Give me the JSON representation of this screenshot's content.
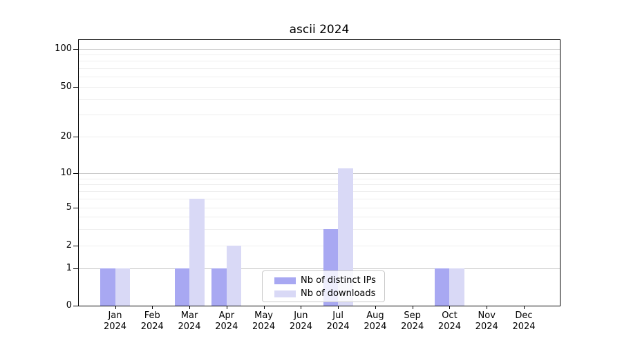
{
  "chart_data": {
    "type": "bar",
    "title": "ascii 2024",
    "categories": [
      "Jan",
      "Feb",
      "Mar",
      "Apr",
      "May",
      "Jun",
      "Jul",
      "Aug",
      "Sep",
      "Oct",
      "Nov",
      "Dec"
    ],
    "year_label": "2024",
    "series": [
      {
        "name": "Nb of distinct IPs",
        "color": "#a8a8f2",
        "values": [
          1,
          0,
          1,
          1,
          0,
          0,
          3,
          0,
          0,
          1,
          0,
          0
        ]
      },
      {
        "name": "Nb of downloads",
        "color": "#d9d9f6",
        "values": [
          1,
          0,
          6,
          2,
          0,
          0,
          11,
          0,
          0,
          1,
          0,
          0
        ]
      }
    ],
    "yticks": [
      0,
      1,
      2,
      5,
      10,
      20,
      50,
      100
    ],
    "y_major_gridlines": [
      1,
      10,
      100
    ],
    "y_minor_gridlines": [
      2,
      3,
      4,
      5,
      6,
      7,
      8,
      9,
      20,
      30,
      40,
      50,
      60,
      70,
      80,
      90
    ],
    "yscale": "symlog",
    "ylim": [
      0,
      115
    ],
    "xlabel": "",
    "ylabel": "",
    "grid": "horizontal major+minor",
    "legend_position": "lower center"
  },
  "colors": {
    "background": "#ffffff",
    "axis": "#000000",
    "major_grid": "#c9c9c9",
    "minor_grid": "#eeeeee",
    "legend_border": "#c9c9c9",
    "series_dark": "#a8a8f2",
    "series_light": "#d9d9f6"
  }
}
